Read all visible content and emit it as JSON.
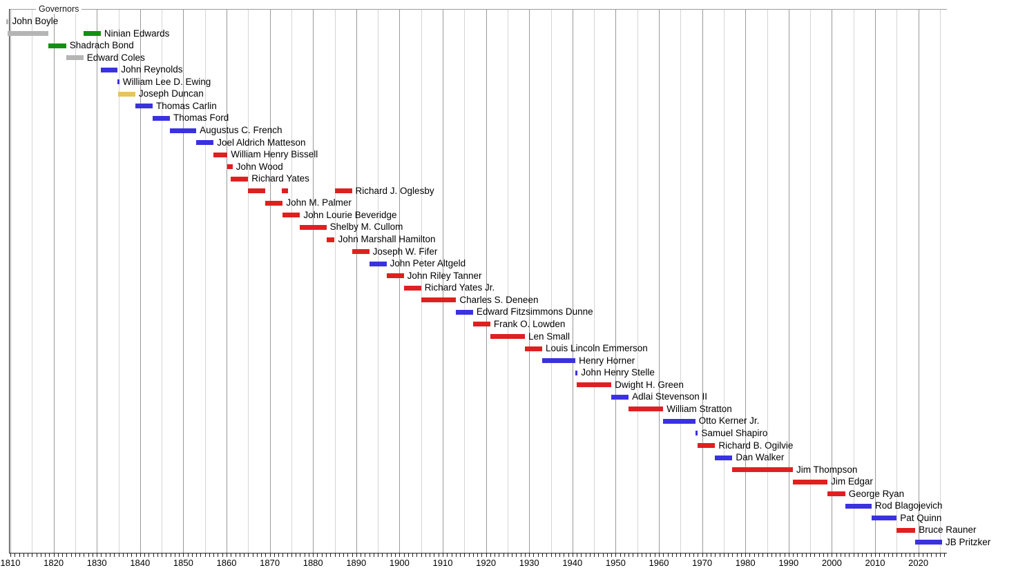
{
  "chart_data": {
    "type": "gantt",
    "title": "Governors",
    "x_axis": {
      "start_year": 1810,
      "end_year": 2026,
      "major_tick_step": 10,
      "minor_grid_step": 5,
      "tick_labels": [
        "1810",
        "1820",
        "1830",
        "1840",
        "1850",
        "1860",
        "1870",
        "1880",
        "1890",
        "1900",
        "1910",
        "1920",
        "1930",
        "1940",
        "1950",
        "1960",
        "1970",
        "1980",
        "1990",
        "2000",
        "2010",
        "2020"
      ]
    },
    "palette": {
      "gray": "#b5b5b5",
      "green": "#129012",
      "blue": "#3a31e0",
      "red": "#df2020",
      "yellow": "#e8c45e"
    },
    "grid_colors": {
      "major": "#999999",
      "minor": "#d4d4d4",
      "axis": "#222222",
      "top_border": "#999999"
    },
    "rows": [
      {
        "name": "John Boyle",
        "terms": [
          {
            "start": 1809.0,
            "end": 1809.6,
            "color": "gray"
          }
        ]
      },
      {
        "name": "Ninian Edwards",
        "terms": [
          {
            "start": 1809.4,
            "end": 1818.8,
            "color": "gray"
          },
          {
            "start": 1826.9,
            "end": 1830.9,
            "color": "green"
          }
        ]
      },
      {
        "name": "Shadrach Bond",
        "terms": [
          {
            "start": 1818.8,
            "end": 1822.9,
            "color": "green"
          }
        ]
      },
      {
        "name": "Edward Coles",
        "terms": [
          {
            "start": 1822.9,
            "end": 1826.9,
            "color": "gray"
          }
        ]
      },
      {
        "name": "John Reynolds",
        "terms": [
          {
            "start": 1830.9,
            "end": 1834.8,
            "color": "blue"
          }
        ]
      },
      {
        "name": "William Lee D. Ewing",
        "terms": [
          {
            "start": 1834.8,
            "end": 1835.2,
            "color": "blue"
          }
        ]
      },
      {
        "name": "Joseph Duncan",
        "terms": [
          {
            "start": 1834.9,
            "end": 1838.9,
            "color": "yellow"
          }
        ]
      },
      {
        "name": "Thomas Carlin",
        "terms": [
          {
            "start": 1838.9,
            "end": 1842.9,
            "color": "blue"
          }
        ]
      },
      {
        "name": "Thomas Ford",
        "terms": [
          {
            "start": 1842.9,
            "end": 1846.9,
            "color": "blue"
          }
        ]
      },
      {
        "name": "Augustus C. French",
        "terms": [
          {
            "start": 1846.9,
            "end": 1853.0,
            "color": "blue"
          }
        ]
      },
      {
        "name": "Joel Aldrich Matteson",
        "terms": [
          {
            "start": 1853.0,
            "end": 1857.0,
            "color": "blue"
          }
        ]
      },
      {
        "name": "William Henry Bissell",
        "terms": [
          {
            "start": 1857.0,
            "end": 1860.2,
            "color": "red"
          }
        ]
      },
      {
        "name": "John Wood",
        "terms": [
          {
            "start": 1860.2,
            "end": 1861.4,
            "color": "red"
          }
        ]
      },
      {
        "name": "Richard Yates",
        "terms": [
          {
            "start": 1861.0,
            "end": 1865.0,
            "color": "red"
          }
        ]
      },
      {
        "name": "Richard J. Oglesby",
        "terms": [
          {
            "start": 1865.0,
            "end": 1869.0,
            "color": "red"
          },
          {
            "start": 1872.8,
            "end": 1874.2,
            "color": "red"
          },
          {
            "start": 1885.0,
            "end": 1889.0,
            "color": "red"
          }
        ]
      },
      {
        "name": "John M. Palmer",
        "terms": [
          {
            "start": 1869.0,
            "end": 1873.0,
            "color": "red"
          }
        ]
      },
      {
        "name": "John Lourie Beveridge",
        "terms": [
          {
            "start": 1873.0,
            "end": 1877.0,
            "color": "red"
          }
        ]
      },
      {
        "name": "Shelby M. Cullom",
        "terms": [
          {
            "start": 1877.0,
            "end": 1883.1,
            "color": "red"
          }
        ]
      },
      {
        "name": "John Marshall Hamilton",
        "terms": [
          {
            "start": 1883.1,
            "end": 1885.0,
            "color": "red"
          }
        ]
      },
      {
        "name": "Joseph W. Fifer",
        "terms": [
          {
            "start": 1889.0,
            "end": 1893.0,
            "color": "red"
          }
        ]
      },
      {
        "name": "John Peter Altgeld",
        "terms": [
          {
            "start": 1893.0,
            "end": 1897.0,
            "color": "blue"
          }
        ]
      },
      {
        "name": "John Riley Tanner",
        "terms": [
          {
            "start": 1897.0,
            "end": 1901.0,
            "color": "red"
          }
        ]
      },
      {
        "name": "Richard Yates Jr.",
        "terms": [
          {
            "start": 1901.0,
            "end": 1905.0,
            "color": "red"
          }
        ]
      },
      {
        "name": "Charles S. Deneen",
        "terms": [
          {
            "start": 1905.0,
            "end": 1913.1,
            "color": "red"
          }
        ]
      },
      {
        "name": "Edward Fitzsimmons Dunne",
        "terms": [
          {
            "start": 1913.1,
            "end": 1917.0,
            "color": "blue"
          }
        ]
      },
      {
        "name": "Frank O. Lowden",
        "terms": [
          {
            "start": 1917.0,
            "end": 1921.0,
            "color": "red"
          }
        ]
      },
      {
        "name": "Len Small",
        "terms": [
          {
            "start": 1921.0,
            "end": 1929.0,
            "color": "red"
          }
        ]
      },
      {
        "name": "Louis Lincoln Emmerson",
        "terms": [
          {
            "start": 1929.0,
            "end": 1933.0,
            "color": "red"
          }
        ]
      },
      {
        "name": "Henry Horner",
        "terms": [
          {
            "start": 1933.0,
            "end": 1940.7,
            "color": "blue"
          }
        ]
      },
      {
        "name": "John Henry Stelle",
        "terms": [
          {
            "start": 1940.7,
            "end": 1941.2,
            "color": "blue"
          }
        ]
      },
      {
        "name": "Dwight H. Green",
        "terms": [
          {
            "start": 1941.0,
            "end": 1949.0,
            "color": "red"
          }
        ]
      },
      {
        "name": "Adlai Stevenson II",
        "terms": [
          {
            "start": 1949.0,
            "end": 1953.0,
            "color": "blue"
          }
        ]
      },
      {
        "name": "William Stratton",
        "terms": [
          {
            "start": 1953.0,
            "end": 1961.0,
            "color": "red"
          }
        ]
      },
      {
        "name": "Otto Kerner Jr.",
        "terms": [
          {
            "start": 1961.0,
            "end": 1968.4,
            "color": "blue"
          }
        ]
      },
      {
        "name": "Samuel Shapiro",
        "terms": [
          {
            "start": 1968.4,
            "end": 1969.0,
            "color": "blue"
          }
        ]
      },
      {
        "name": "Richard B. Ogilvie",
        "terms": [
          {
            "start": 1969.0,
            "end": 1973.0,
            "color": "red"
          }
        ]
      },
      {
        "name": "Dan Walker",
        "terms": [
          {
            "start": 1973.0,
            "end": 1977.0,
            "color": "blue"
          }
        ]
      },
      {
        "name": "Jim Thompson",
        "terms": [
          {
            "start": 1977.0,
            "end": 1991.0,
            "color": "red"
          }
        ]
      },
      {
        "name": "Jim Edgar",
        "terms": [
          {
            "start": 1991.0,
            "end": 1999.0,
            "color": "red"
          }
        ]
      },
      {
        "name": "George Ryan",
        "terms": [
          {
            "start": 1999.0,
            "end": 2003.1,
            "color": "red"
          }
        ]
      },
      {
        "name": "Rod Blagojevich",
        "terms": [
          {
            "start": 2003.1,
            "end": 2009.2,
            "color": "blue"
          }
        ]
      },
      {
        "name": "Pat Quinn",
        "terms": [
          {
            "start": 2009.2,
            "end": 2015.0,
            "color": "blue"
          }
        ]
      },
      {
        "name": "Bruce Rauner",
        "terms": [
          {
            "start": 2015.0,
            "end": 2019.3,
            "color": "red"
          }
        ]
      },
      {
        "name": "JB Pritzker",
        "terms": [
          {
            "start": 2019.3,
            "end": 2025.5,
            "color": "blue"
          }
        ]
      }
    ]
  }
}
